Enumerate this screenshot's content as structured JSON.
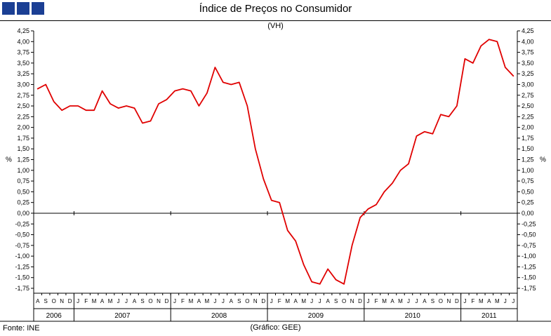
{
  "header": {
    "title": "Índice de Preços no Consumidor",
    "subtitle": "(VH)"
  },
  "footer": {
    "source": "Fonte: INE",
    "credit": "(Gráfico: GEE)"
  },
  "axis": {
    "unit_label": "%"
  },
  "logo": {
    "color": "#1b3f94",
    "squares": 3
  },
  "chart_data": {
    "type": "line",
    "title": "Índice de Preços no Consumidor (VH)",
    "xlabel": "",
    "ylabel": "%",
    "ylim": [
      -1.75,
      4.25
    ],
    "ytick_step": 0.25,
    "grid": "zero-line-only",
    "legend": "none",
    "line_color": "#e00000",
    "years": [
      {
        "label": "2006",
        "months": [
          "A",
          "S",
          "O",
          "N",
          "D"
        ]
      },
      {
        "label": "2007",
        "months": [
          "J",
          "F",
          "M",
          "A",
          "M",
          "J",
          "J",
          "A",
          "S",
          "O",
          "N",
          "D"
        ]
      },
      {
        "label": "2008",
        "months": [
          "J",
          "F",
          "M",
          "A",
          "M",
          "J",
          "J",
          "A",
          "S",
          "O",
          "N",
          "D"
        ]
      },
      {
        "label": "2009",
        "months": [
          "J",
          "F",
          "M",
          "A",
          "M",
          "J",
          "J",
          "A",
          "S",
          "O",
          "N",
          "D"
        ]
      },
      {
        "label": "2010",
        "months": [
          "J",
          "F",
          "M",
          "A",
          "M",
          "J",
          "J",
          "A",
          "S",
          "O",
          "N",
          "D"
        ]
      },
      {
        "label": "2011",
        "months": [
          "J",
          "F",
          "M",
          "A",
          "M",
          "J",
          "J"
        ]
      }
    ],
    "values": [
      2.9,
      3.0,
      2.6,
      2.4,
      2.5,
      2.5,
      2.4,
      2.4,
      2.85,
      2.55,
      2.45,
      2.5,
      2.45,
      2.1,
      2.15,
      2.55,
      2.65,
      2.85,
      2.9,
      2.85,
      2.5,
      2.8,
      3.4,
      3.05,
      3.0,
      3.05,
      2.5,
      1.5,
      0.8,
      0.3,
      0.25,
      -0.4,
      -0.65,
      -1.2,
      -1.6,
      -1.65,
      -1.3,
      -1.55,
      -1.65,
      -0.75,
      -0.1,
      0.1,
      0.2,
      0.5,
      0.7,
      1.0,
      1.15,
      1.8,
      1.9,
      1.85,
      2.3,
      2.25,
      2.5,
      3.6,
      3.5,
      3.9,
      4.05,
      4.0,
      3.4,
      3.2
    ]
  }
}
